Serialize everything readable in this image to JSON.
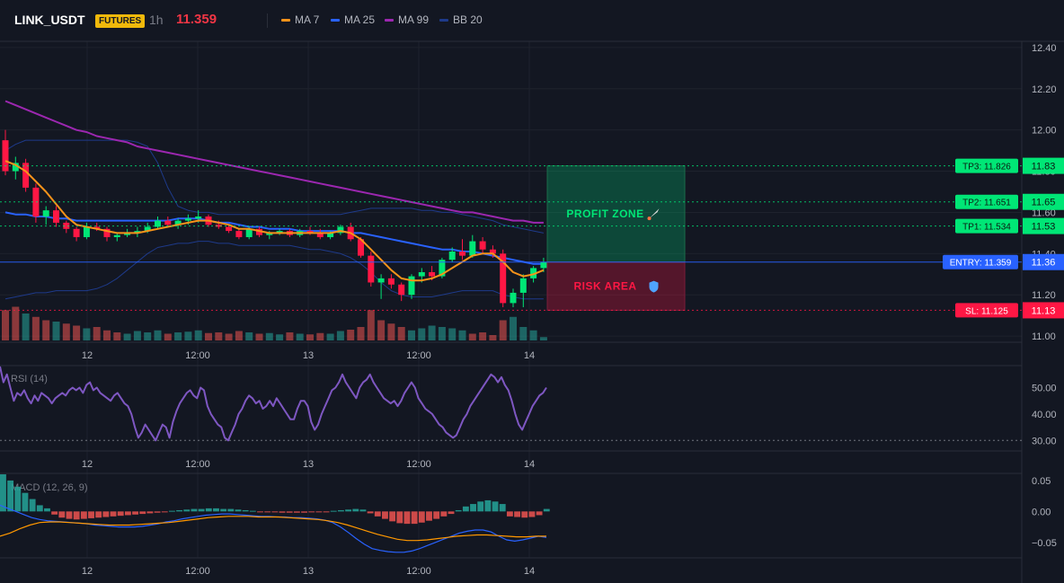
{
  "header": {
    "symbol": "LINK_USDT",
    "badge": "FUTURES",
    "interval": "1h",
    "last_price": "11.359",
    "legend": [
      {
        "label": "MA 7",
        "color": "#f7931a"
      },
      {
        "label": "MA 25",
        "color": "#2962ff"
      },
      {
        "label": "MA 99",
        "color": "#9c27b0"
      },
      {
        "label": "BB 20",
        "color": "#1e3a8a"
      }
    ]
  },
  "colors": {
    "bull": "#26a69a",
    "bear": "#ef5350",
    "bull_candle": "#00e676",
    "bear_candle": "#ff1744",
    "rsi": "#7e57c2",
    "macd": "#2962ff",
    "signal": "#ff9800"
  },
  "chart_data": [
    {
      "type": "candlestick",
      "panel": "price",
      "x_ticks": [
        "12",
        "12:00",
        "13",
        "12:00",
        "14"
      ],
      "y_ticks": [
        "12.40",
        "12.20",
        "12.00",
        "11.80",
        "11.60",
        "11.40",
        "11.20",
        "11.00"
      ],
      "ylim": [
        10.97,
        12.43
      ],
      "candles": [
        [
          11.95,
          12.0,
          11.78,
          11.8
        ],
        [
          11.8,
          11.87,
          11.76,
          11.84
        ],
        [
          11.84,
          11.86,
          11.7,
          11.72
        ],
        [
          11.72,
          11.74,
          11.55,
          11.58
        ],
        [
          11.58,
          11.63,
          11.54,
          11.61
        ],
        [
          11.61,
          11.63,
          11.53,
          11.55
        ],
        [
          11.55,
          11.56,
          11.5,
          11.52
        ],
        [
          11.52,
          11.53,
          11.46,
          11.48
        ],
        [
          11.48,
          11.55,
          11.47,
          11.53
        ],
        [
          11.53,
          11.55,
          11.51,
          11.52
        ],
        [
          11.52,
          11.53,
          11.46,
          11.48
        ],
        [
          11.48,
          11.5,
          11.46,
          11.49
        ],
        [
          11.49,
          11.52,
          11.48,
          11.5
        ],
        [
          11.5,
          11.53,
          11.48,
          11.51
        ],
        [
          11.51,
          11.55,
          11.5,
          11.53
        ],
        [
          11.53,
          11.58,
          11.52,
          11.56
        ],
        [
          11.56,
          11.58,
          11.53,
          11.54
        ],
        [
          11.54,
          11.57,
          11.52,
          11.56
        ],
        [
          11.56,
          11.59,
          11.54,
          11.57
        ],
        [
          11.57,
          11.61,
          11.55,
          11.58
        ],
        [
          11.58,
          11.59,
          11.53,
          11.54
        ],
        [
          11.54,
          11.56,
          11.52,
          11.53
        ],
        [
          11.53,
          11.54,
          11.5,
          11.51
        ],
        [
          11.51,
          11.52,
          11.47,
          11.48
        ],
        [
          11.48,
          11.53,
          11.47,
          11.52
        ],
        [
          11.52,
          11.53,
          11.48,
          11.49
        ],
        [
          11.49,
          11.51,
          11.47,
          11.5
        ],
        [
          11.5,
          11.52,
          11.49,
          11.51
        ],
        [
          11.51,
          11.52,
          11.48,
          11.49
        ],
        [
          11.49,
          11.52,
          11.48,
          11.51
        ],
        [
          11.51,
          11.53,
          11.49,
          11.5
        ],
        [
          11.5,
          11.52,
          11.47,
          11.48
        ],
        [
          11.48,
          11.51,
          11.47,
          11.5
        ],
        [
          11.5,
          11.54,
          11.49,
          11.53
        ],
        [
          11.53,
          11.55,
          11.46,
          11.47
        ],
        [
          11.47,
          11.48,
          11.38,
          11.39
        ],
        [
          11.39,
          11.41,
          11.24,
          11.26
        ],
        [
          11.26,
          11.3,
          11.18,
          11.28
        ],
        [
          11.28,
          11.3,
          11.23,
          11.25
        ],
        [
          11.25,
          11.26,
          11.17,
          11.2
        ],
        [
          11.2,
          11.3,
          11.18,
          11.29
        ],
        [
          11.29,
          11.33,
          11.26,
          11.31
        ],
        [
          11.31,
          11.34,
          11.27,
          11.29
        ],
        [
          11.29,
          11.38,
          11.28,
          11.37
        ],
        [
          11.37,
          11.43,
          11.36,
          11.41
        ],
        [
          11.41,
          11.47,
          11.37,
          11.39
        ],
        [
          11.39,
          11.49,
          11.38,
          11.46
        ],
        [
          11.46,
          11.48,
          11.4,
          11.42
        ],
        [
          11.42,
          11.44,
          11.38,
          11.4
        ],
        [
          11.4,
          11.42,
          11.14,
          11.16
        ],
        [
          11.16,
          11.23,
          11.14,
          11.21
        ],
        [
          11.21,
          11.3,
          11.14,
          11.28
        ],
        [
          11.28,
          11.34,
          11.26,
          11.33
        ],
        [
          11.33,
          11.38,
          11.31,
          11.359
        ]
      ],
      "volume": [
        [
          45,
          0
        ],
        [
          50,
          0
        ],
        [
          40,
          1
        ],
        [
          35,
          0
        ],
        [
          30,
          0
        ],
        [
          28,
          1
        ],
        [
          25,
          0
        ],
        [
          22,
          0
        ],
        [
          18,
          1
        ],
        [
          20,
          0
        ],
        [
          15,
          0
        ],
        [
          12,
          0
        ],
        [
          10,
          1
        ],
        [
          14,
          1
        ],
        [
          12,
          1
        ],
        [
          15,
          1
        ],
        [
          10,
          0
        ],
        [
          12,
          1
        ],
        [
          13,
          1
        ],
        [
          15,
          1
        ],
        [
          11,
          0
        ],
        [
          12,
          0
        ],
        [
          10,
          0
        ],
        [
          14,
          0
        ],
        [
          12,
          1
        ],
        [
          10,
          0
        ],
        [
          11,
          1
        ],
        [
          9,
          1
        ],
        [
          12,
          0
        ],
        [
          10,
          1
        ],
        [
          9,
          0
        ],
        [
          11,
          0
        ],
        [
          10,
          1
        ],
        [
          14,
          1
        ],
        [
          16,
          0
        ],
        [
          20,
          0
        ],
        [
          45,
          0
        ],
        [
          30,
          0
        ],
        [
          25,
          0
        ],
        [
          20,
          0
        ],
        [
          15,
          1
        ],
        [
          18,
          1
        ],
        [
          22,
          1
        ],
        [
          20,
          1
        ],
        [
          18,
          1
        ],
        [
          15,
          1
        ],
        [
          10,
          0
        ],
        [
          12,
          0
        ],
        [
          8,
          0
        ],
        [
          30,
          0
        ],
        [
          35,
          1
        ],
        [
          20,
          1
        ],
        [
          15,
          1
        ],
        [
          5,
          1
        ]
      ],
      "ma7": [
        11.85,
        11.83,
        11.8,
        11.75,
        11.7,
        11.64,
        11.58,
        11.54,
        11.53,
        11.52,
        11.51,
        11.5,
        11.5,
        11.5,
        11.51,
        11.52,
        11.53,
        11.54,
        11.55,
        11.56,
        11.56,
        11.55,
        11.54,
        11.52,
        11.52,
        11.51,
        11.5,
        11.5,
        11.5,
        11.5,
        11.5,
        11.5,
        11.5,
        11.51,
        11.5,
        11.47,
        11.42,
        11.37,
        11.32,
        11.28,
        11.27,
        11.27,
        11.28,
        11.3,
        11.33,
        11.36,
        11.39,
        11.4,
        11.4,
        11.36,
        11.31,
        11.29,
        11.3,
        11.32
      ],
      "ma25": [
        11.6,
        11.59,
        11.59,
        11.58,
        11.58,
        11.57,
        11.57,
        11.56,
        11.56,
        11.56,
        11.56,
        11.56,
        11.56,
        11.56,
        11.56,
        11.56,
        11.56,
        11.57,
        11.57,
        11.57,
        11.56,
        11.55,
        11.55,
        11.54,
        11.53,
        11.53,
        11.52,
        11.52,
        11.52,
        11.51,
        11.51,
        11.51,
        11.51,
        11.51,
        11.5,
        11.5,
        11.49,
        11.48,
        11.47,
        11.46,
        11.45,
        11.44,
        11.43,
        11.42,
        11.42,
        11.41,
        11.41,
        11.4,
        11.39,
        11.38,
        11.37,
        11.36,
        11.35,
        11.35
      ],
      "ma99": [
        12.14,
        12.12,
        12.1,
        12.08,
        12.06,
        12.04,
        12.02,
        12.0,
        11.99,
        11.97,
        11.96,
        11.95,
        11.94,
        11.92,
        11.91,
        11.9,
        11.89,
        11.88,
        11.87,
        11.86,
        11.85,
        11.84,
        11.83,
        11.82,
        11.81,
        11.8,
        11.79,
        11.78,
        11.77,
        11.76,
        11.75,
        11.74,
        11.73,
        11.72,
        11.71,
        11.7,
        11.69,
        11.68,
        11.67,
        11.66,
        11.65,
        11.64,
        11.63,
        11.62,
        11.61,
        11.6,
        11.6,
        11.59,
        11.58,
        11.57,
        11.56,
        11.56,
        11.55,
        11.55
      ],
      "bb_upper": [
        11.9,
        11.93,
        11.95,
        11.95,
        11.95,
        11.95,
        11.95,
        11.95,
        11.95,
        11.95,
        11.95,
        11.95,
        11.95,
        11.94,
        11.92,
        11.84,
        11.72,
        11.63,
        11.61,
        11.6,
        11.6,
        11.59,
        11.59,
        11.59,
        11.59,
        11.59,
        11.59,
        11.59,
        11.59,
        11.59,
        11.59,
        11.59,
        11.59,
        11.59,
        11.6,
        11.61,
        11.62,
        11.62,
        11.62,
        11.62,
        11.62,
        11.61,
        11.61,
        11.6,
        11.6,
        11.59,
        11.58,
        11.57,
        11.56,
        11.54,
        11.53,
        11.52,
        11.51,
        11.5
      ],
      "bb_lower": [
        11.18,
        11.19,
        11.2,
        11.21,
        11.21,
        11.22,
        11.22,
        11.22,
        11.22,
        11.23,
        11.25,
        11.28,
        11.32,
        11.36,
        11.4,
        11.43,
        11.44,
        11.45,
        11.45,
        11.46,
        11.46,
        11.45,
        11.45,
        11.44,
        11.44,
        11.44,
        11.44,
        11.44,
        11.44,
        11.43,
        11.42,
        11.42,
        11.41,
        11.4,
        11.38,
        11.35,
        11.31,
        11.26,
        11.22,
        11.2,
        11.19,
        11.19,
        11.19,
        11.2,
        11.21,
        11.22,
        11.22,
        11.22,
        11.22,
        11.2,
        11.19,
        11.18,
        11.18,
        11.18
      ],
      "trade_levels": [
        {
          "name": "tp3",
          "label": "TP3: 11.826",
          "axis": "11.83",
          "value": 11.826,
          "color": "#00e676"
        },
        {
          "name": "tp2",
          "label": "TP2: 11.651",
          "axis": "11.65",
          "value": 11.651,
          "color": "#00e676"
        },
        {
          "name": "tp1",
          "label": "TP1: 11.534",
          "axis": "11.53",
          "value": 11.534,
          "color": "#00e676"
        },
        {
          "name": "entry",
          "label": "ENTRY: 11.359",
          "axis": "11.36",
          "value": 11.359,
          "color": "#2962ff"
        },
        {
          "name": "sl",
          "label": "SL: 11.125",
          "axis": "11.13",
          "value": 11.125,
          "color": "#ff1744"
        }
      ],
      "zones": [
        {
          "name": "profit-zone",
          "label": "PROFIT ZONE",
          "icon": "rocket",
          "top": 11.826,
          "bottom": 11.359,
          "color": "#00e676"
        },
        {
          "name": "risk-area",
          "label": "RISK AREA",
          "icon": "shield",
          "top": 11.359,
          "bottom": 11.125,
          "color": "#ff1744"
        }
      ]
    },
    {
      "type": "line",
      "panel": "rsi",
      "title": "RSI (14)",
      "y_ticks": [
        "50.00",
        "40.00",
        "30.00"
      ],
      "ylim": [
        26,
        58
      ],
      "levels": [
        30
      ],
      "values": [
        58,
        52,
        55,
        50,
        45,
        48,
        47,
        49,
        46,
        44,
        47,
        45,
        48,
        47,
        46,
        44,
        46,
        47,
        48,
        47,
        49,
        50,
        49,
        50,
        48,
        51,
        52,
        49,
        50,
        48,
        47,
        46,
        45,
        47,
        48,
        46,
        44,
        43,
        40,
        35,
        31,
        33,
        36,
        34,
        32,
        30,
        33,
        36,
        35,
        31,
        37,
        41,
        44,
        46,
        48,
        49,
        47,
        46,
        50,
        49,
        43,
        40,
        38,
        36,
        35,
        31,
        30,
        33,
        36,
        40,
        42,
        45,
        47,
        46,
        44,
        45,
        42,
        43,
        45,
        43,
        46,
        44,
        42,
        40,
        38,
        38,
        42,
        45,
        45,
        43,
        37,
        34,
        36,
        40,
        43,
        46,
        49,
        50,
        52,
        55,
        52,
        50,
        48,
        46,
        50,
        52,
        53,
        55,
        52,
        50,
        48,
        46,
        45,
        44,
        45,
        43,
        45,
        48,
        50,
        52,
        50,
        46,
        44,
        42,
        41,
        40,
        38,
        36,
        35,
        33,
        32,
        31,
        32,
        35,
        38,
        40,
        43,
        45,
        47,
        49,
        51,
        53,
        55,
        54,
        52,
        54,
        51,
        49,
        45,
        40,
        36,
        34,
        37,
        40,
        43,
        45,
        47,
        48,
        50
      ]
    },
    {
      "type": "bar",
      "panel": "macd",
      "title": "MACD (12, 26, 9)",
      "y_ticks": [
        "0.05",
        "0.00",
        "−0.05"
      ],
      "ylim": [
        -0.075,
        0.06
      ],
      "histogram": [
        0.06,
        0.05,
        0.04,
        0.03,
        0.02,
        0.01,
        0.005,
        -0.005,
        -0.01,
        -0.012,
        -0.013,
        -0.012,
        -0.011,
        -0.01,
        -0.009,
        -0.008,
        -0.007,
        -0.006,
        -0.005,
        -0.004,
        -0.003,
        -0.002,
        -0.001,
        0.001,
        0.002,
        0.003,
        0.004,
        0.004,
        0.005,
        0.005,
        0.004,
        0.004,
        0.003,
        0.002,
        0.001,
        -0.001,
        -0.001,
        -0.001,
        -0.002,
        -0.002,
        -0.002,
        -0.002,
        -0.001,
        -0.001,
        -0.001,
        0.001,
        0.002,
        0.003,
        0.004,
        0.003,
        -0.003,
        -0.008,
        -0.012,
        -0.016,
        -0.019,
        -0.02,
        -0.02,
        -0.018,
        -0.015,
        -0.012,
        -0.008,
        -0.004,
        0.002,
        0.008,
        0.012,
        0.016,
        0.018,
        0.016,
        0.012,
        -0.008,
        -0.009,
        -0.01,
        -0.009,
        -0.006,
        0.004
      ],
      "macd": [
        0.01,
        0.005,
        0,
        -0.005,
        -0.01,
        -0.013,
        -0.015,
        -0.016,
        -0.017,
        -0.018,
        -0.019,
        -0.02,
        -0.022,
        -0.023,
        -0.024,
        -0.025,
        -0.025,
        -0.025,
        -0.024,
        -0.022,
        -0.02,
        -0.017,
        -0.015,
        -0.012,
        -0.01,
        -0.008,
        -0.006,
        -0.005,
        -0.004,
        -0.004,
        -0.005,
        -0.006,
        -0.007,
        -0.008,
        -0.008,
        -0.009,
        -0.009,
        -0.01,
        -0.01,
        -0.011,
        -0.012,
        -0.014,
        -0.018,
        -0.025,
        -0.034,
        -0.044,
        -0.053,
        -0.06,
        -0.063,
        -0.065,
        -0.066,
        -0.066,
        -0.064,
        -0.06,
        -0.055,
        -0.05,
        -0.045,
        -0.04,
        -0.035,
        -0.032,
        -0.03,
        -0.03,
        -0.033,
        -0.04,
        -0.046,
        -0.048,
        -0.046,
        -0.043,
        -0.04,
        -0.042
      ],
      "signal": [
        -0.04,
        -0.035,
        -0.028,
        -0.022,
        -0.018,
        -0.017,
        -0.017,
        -0.018,
        -0.019,
        -0.02,
        -0.021,
        -0.022,
        -0.022,
        -0.022,
        -0.021,
        -0.02,
        -0.019,
        -0.018,
        -0.016,
        -0.014,
        -0.012,
        -0.01,
        -0.009,
        -0.008,
        -0.008,
        -0.008,
        -0.009,
        -0.009,
        -0.009,
        -0.01,
        -0.011,
        -0.012,
        -0.013,
        -0.015,
        -0.018,
        -0.022,
        -0.027,
        -0.032,
        -0.037,
        -0.041,
        -0.045,
        -0.047,
        -0.047,
        -0.046,
        -0.044,
        -0.042,
        -0.04,
        -0.039,
        -0.038,
        -0.038,
        -0.039,
        -0.04,
        -0.041,
        -0.041,
        -0.04,
        -0.04
      ]
    }
  ]
}
